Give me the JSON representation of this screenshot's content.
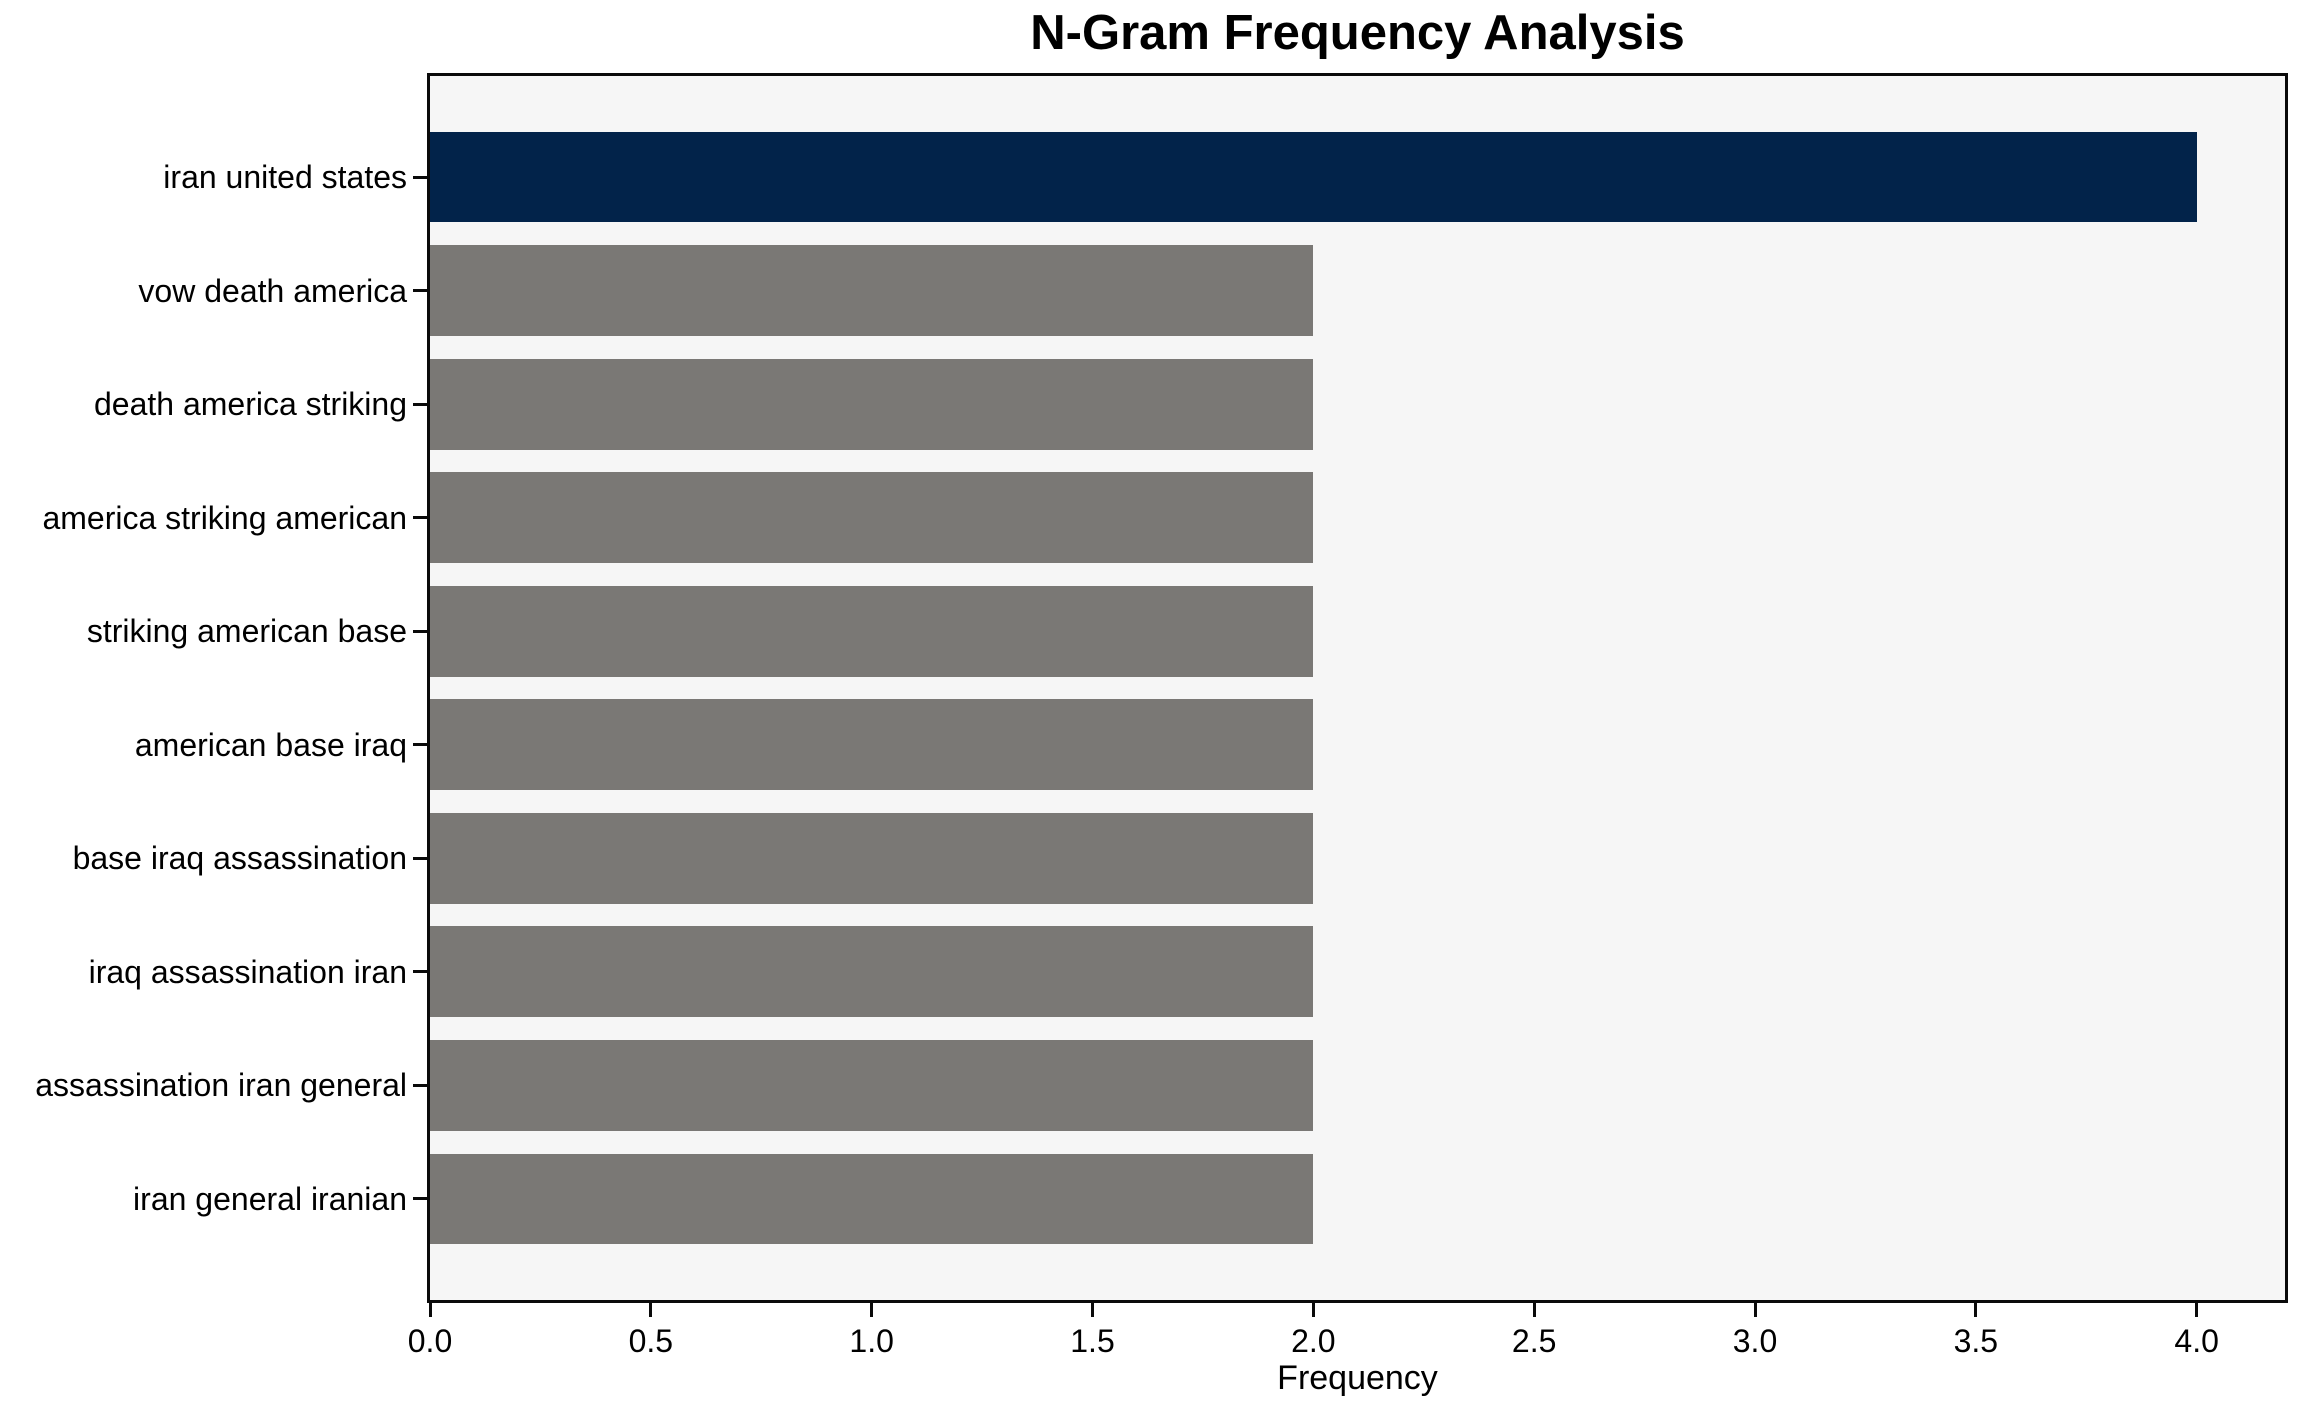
{
  "chart_data": {
    "type": "bar",
    "orientation": "horizontal",
    "title": "N-Gram Frequency Analysis",
    "xlabel": "Frequency",
    "ylabel": "",
    "categories": [
      "iran united states",
      "vow death america",
      "death america striking",
      "america striking american",
      "striking american base",
      "american base iraq",
      "base iraq assassination",
      "iraq assassination iran",
      "assassination iran general",
      "iran general iranian"
    ],
    "values": [
      4,
      2,
      2,
      2,
      2,
      2,
      2,
      2,
      2,
      2
    ],
    "bar_colors": [
      "#02234a",
      "#7a7875",
      "#7a7875",
      "#7a7875",
      "#7a7875",
      "#7a7875",
      "#7a7875",
      "#7a7875",
      "#7a7875",
      "#7a7875"
    ],
    "xlim": [
      0,
      4.2
    ],
    "xticks": [
      0,
      0.5,
      1,
      1.5,
      2,
      2.5,
      3,
      3.5,
      4
    ],
    "xtick_labels": [
      "0.0",
      "0.5",
      "1.0",
      "1.5",
      "2.0",
      "2.5",
      "3.0",
      "3.5",
      "4.0"
    ],
    "grid": false,
    "legend_position": "none",
    "colors": {
      "highlight_bar": "#02234a",
      "default_bar": "#7a7875",
      "plot_background": "#f6f6f6",
      "figure_background": "#ffffff",
      "spine": "#0a0a0a",
      "text": "#000000"
    }
  }
}
